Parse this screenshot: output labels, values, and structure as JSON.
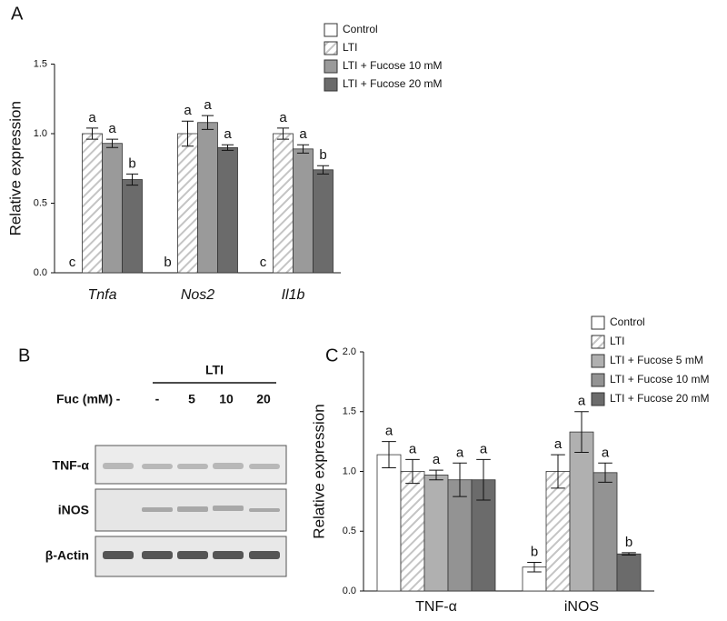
{
  "panels": [
    "A",
    "B",
    "C"
  ],
  "blot": {
    "group_label": "LTI",
    "row_header": "Fuc (mM)",
    "lanes": [
      "-",
      "-",
      "5",
      "10",
      "20"
    ],
    "rows": [
      "TNF-α",
      "iNOS",
      "β-Actin"
    ]
  },
  "chart_data": [
    {
      "type": "bar",
      "ylabel": "Relative expression",
      "categories": [
        "Tnfa",
        "Nos2",
        "Il1b"
      ],
      "category_style": "italic",
      "ylim": [
        0,
        1.5
      ],
      "yticks": [
        {
          "value": 0,
          "label": "0.0"
        },
        {
          "value": 0.5,
          "label": "0.5"
        },
        {
          "value": 1,
          "label": "1.0"
        },
        {
          "value": 1.5,
          "label": "1.5"
        }
      ],
      "series": [
        {
          "name": "Control",
          "color": "#ffffff",
          "values": [
            0,
            0,
            0
          ],
          "errors": [
            0,
            0,
            0
          ],
          "letters": [
            "c",
            "b",
            "c"
          ]
        },
        {
          "name": "LTI",
          "color": "#ffffff",
          "hatch": true,
          "values": [
            1.0,
            1.0,
            1.0
          ],
          "errors": [
            0.04,
            0.09,
            0.04
          ],
          "letters": [
            "a",
            "a",
            "a"
          ]
        },
        {
          "name": "LTI + Fucose 10 mM",
          "color": "#9a9a9a",
          "values": [
            0.93,
            1.08,
            0.89
          ],
          "errors": [
            0.03,
            0.05,
            0.03
          ],
          "letters": [
            "a",
            "a",
            "a"
          ]
        },
        {
          "name": "LTI + Fucose 20 mM",
          "color": "#6b6b6b",
          "values": [
            0.67,
            0.9,
            0.74
          ],
          "errors": [
            0.04,
            0.02,
            0.03
          ],
          "letters": [
            "b",
            "a",
            "b"
          ]
        }
      ]
    },
    {
      "type": "bar",
      "ylabel": "Relative expression",
      "categories": [
        "TNF-α",
        "iNOS"
      ],
      "category_style": "normal",
      "ylim": [
        0,
        2
      ],
      "yticks": [
        {
          "value": 0,
          "label": "0.0"
        },
        {
          "value": 0.5,
          "label": "0.5"
        },
        {
          "value": 1,
          "label": "1.0"
        },
        {
          "value": 1.5,
          "label": "1.5"
        },
        {
          "value": 2,
          "label": "2.0"
        }
      ],
      "series": [
        {
          "name": "Control",
          "color": "#ffffff",
          "values": [
            1.14,
            0.2
          ],
          "errors": [
            0.11,
            0.04
          ],
          "letters": [
            "a",
            "b"
          ]
        },
        {
          "name": "LTI",
          "color": "#ffffff",
          "hatch": true,
          "values": [
            1.0,
            1.0
          ],
          "errors": [
            0.1,
            0.14
          ],
          "letters": [
            "a",
            "a"
          ]
        },
        {
          "name": "LTI + Fucose 5 mM",
          "color": "#b0b0b0",
          "values": [
            0.97,
            1.33
          ],
          "errors": [
            0.04,
            0.17
          ],
          "letters": [
            "a",
            "a"
          ]
        },
        {
          "name": "LTI + Fucose 10 mM",
          "color": "#939393",
          "values": [
            0.93,
            0.99
          ],
          "errors": [
            0.14,
            0.08
          ],
          "letters": [
            "a",
            "a"
          ]
        },
        {
          "name": "LTI + Fucose 20 mM",
          "color": "#6b6b6b",
          "values": [
            0.93,
            0.31
          ],
          "errors": [
            0.17,
            0.01
          ],
          "letters": [
            "a",
            "b"
          ]
        }
      ]
    }
  ]
}
